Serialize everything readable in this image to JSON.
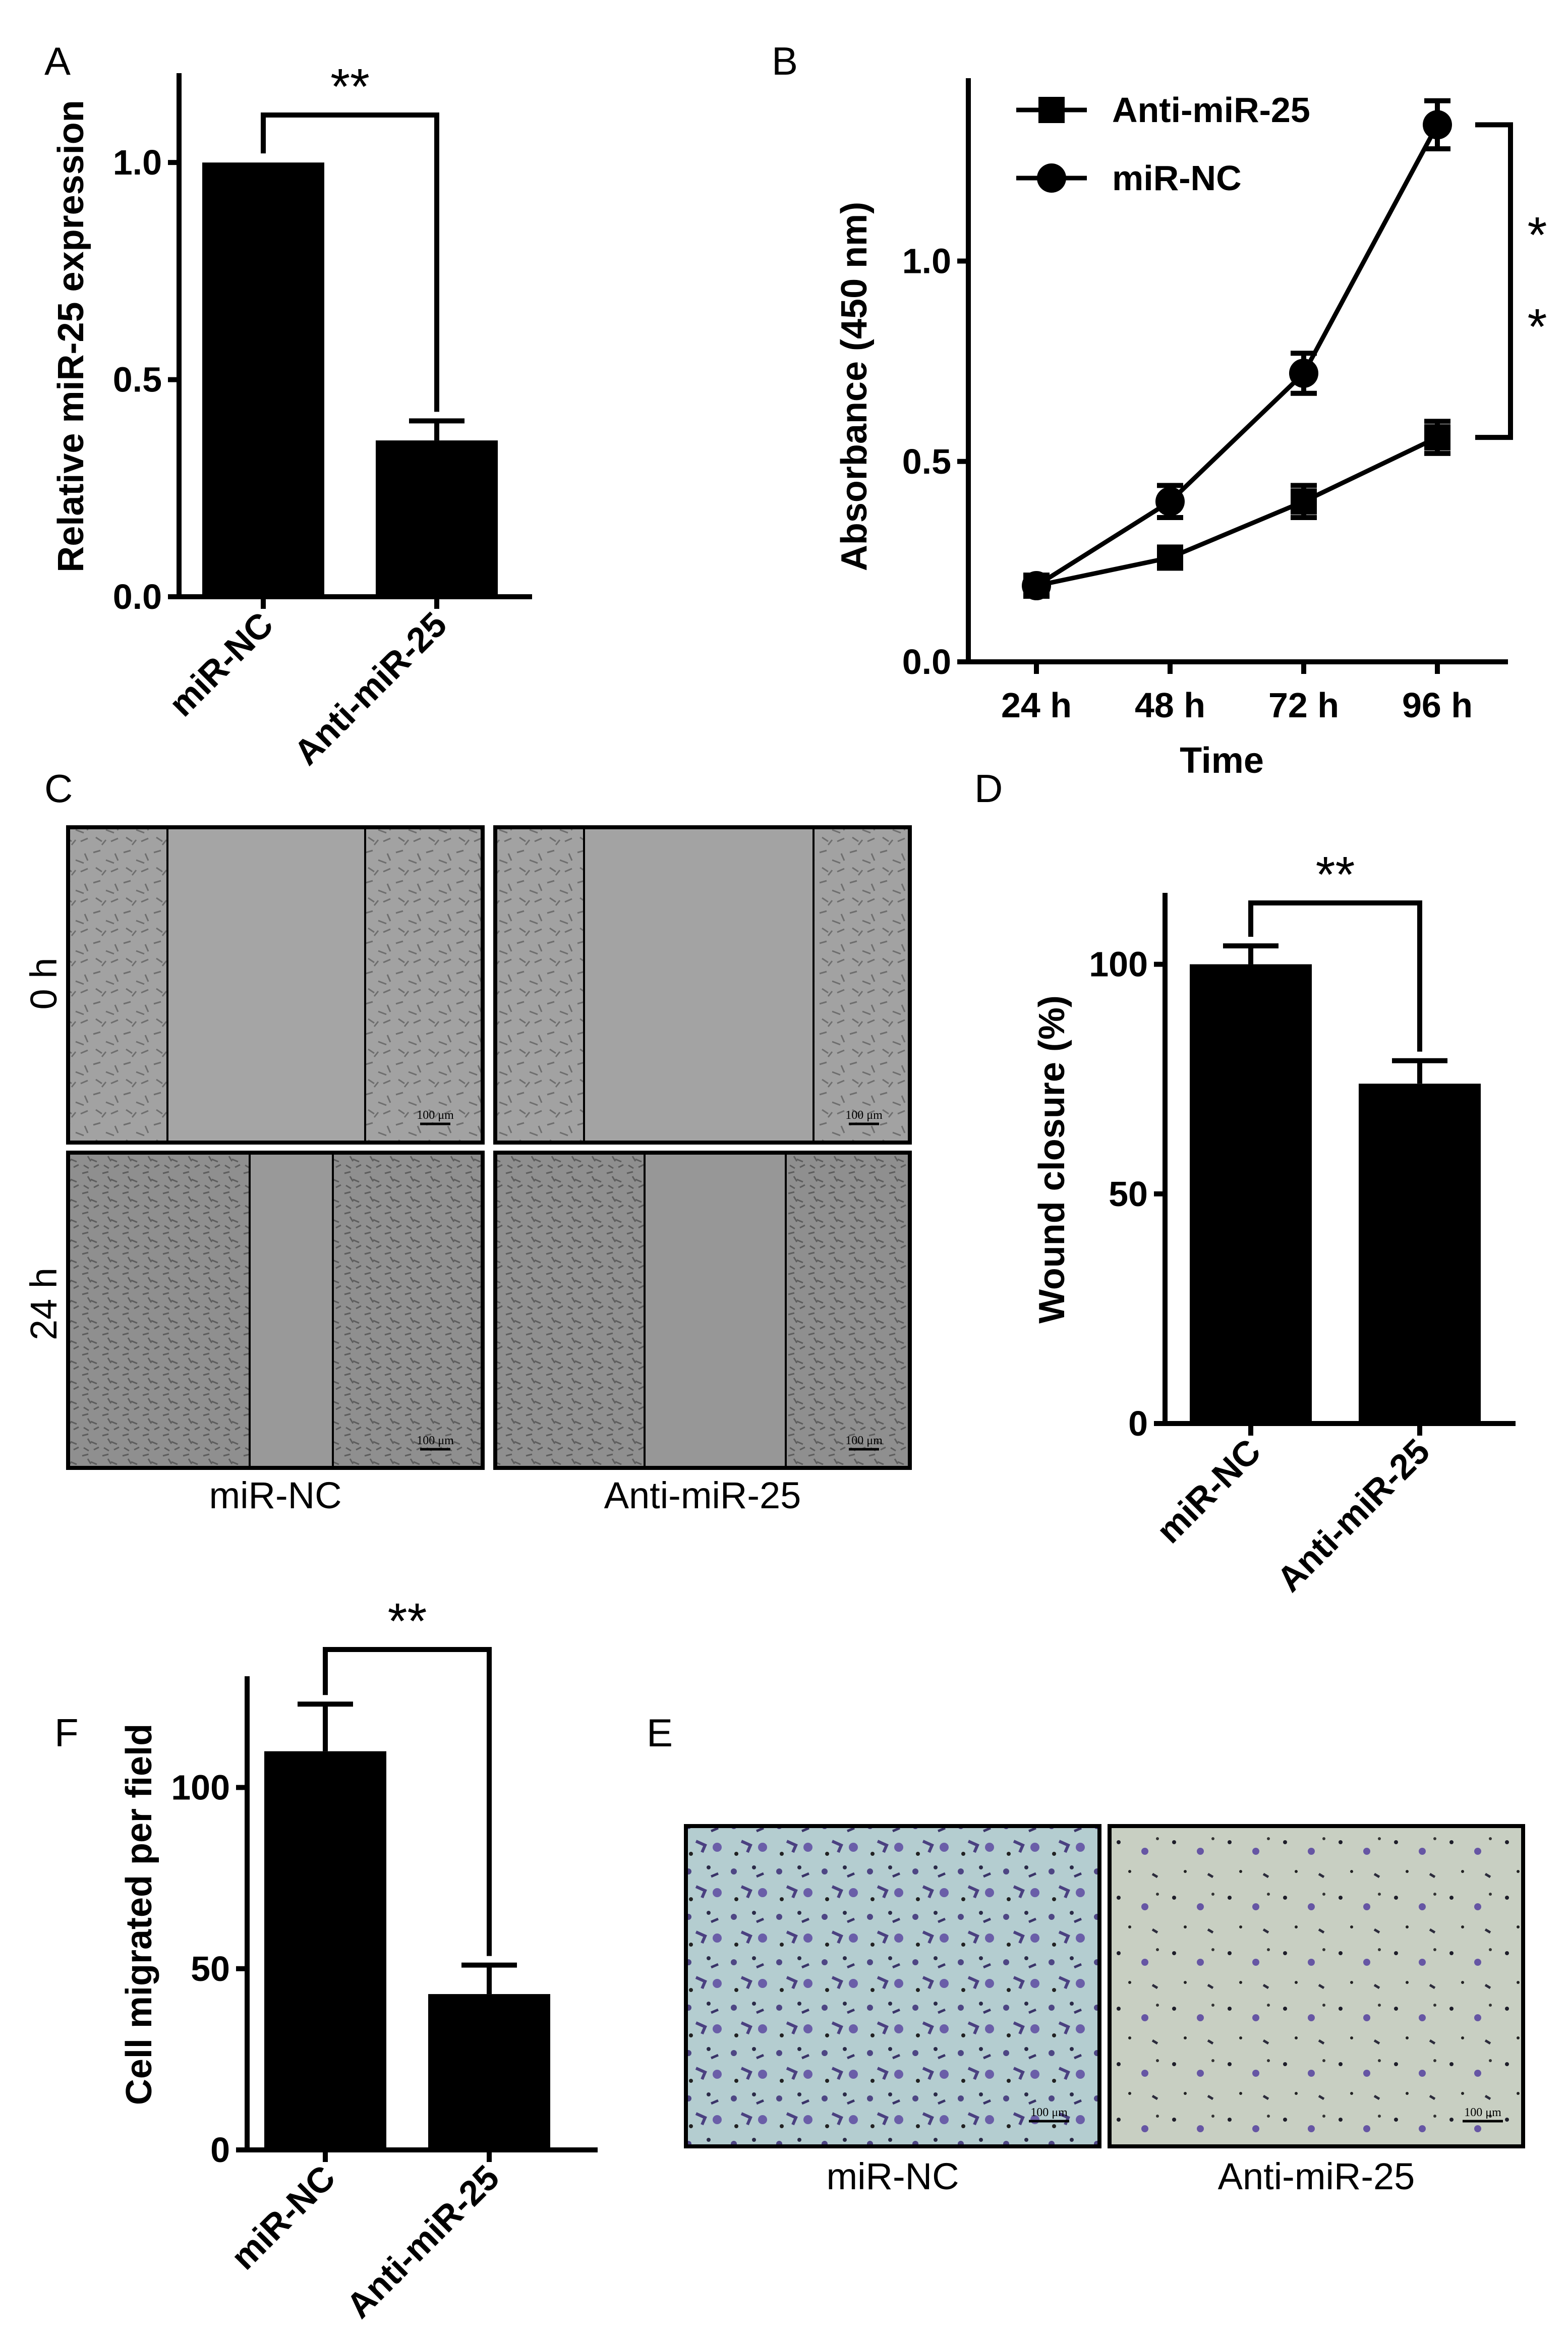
{
  "panels": {
    "A": {
      "label": "A",
      "sig": "**",
      "chart_data": {
        "type": "bar",
        "categories": [
          "miR-NC",
          "Anti-miR-25"
        ],
        "values": [
          1.0,
          0.36
        ],
        "errors": [
          0.0,
          0.045
        ],
        "ylabel": "Relative miR-25 expression",
        "xlabel": "",
        "ylim": [
          0,
          1.2
        ],
        "yticks": [
          "0.0",
          "0.5",
          "1.0"
        ],
        "ytick_values": [
          0,
          0.5,
          1.0
        ]
      }
    },
    "B": {
      "label": "B",
      "sig": "* *",
      "chart_data": {
        "type": "line",
        "x": [
          "24 h",
          "48 h",
          "72 h",
          "96 h"
        ],
        "series": [
          {
            "name": "Anti-miR-25",
            "marker": "square",
            "values": [
              0.19,
              0.26,
              0.4,
              0.56
            ],
            "errors": [
              0.02,
              0.02,
              0.04,
              0.04
            ]
          },
          {
            "name": "miR-NC",
            "marker": "circle",
            "values": [
              0.19,
              0.4,
              0.72,
              1.34
            ],
            "errors": [
              0.02,
              0.04,
              0.05,
              0.06
            ]
          }
        ],
        "ylabel": "Absorbance (450 nm)",
        "xlabel": "Time",
        "ylim": [
          0,
          1.45
        ],
        "yticks": [
          "0.0",
          "0.5",
          "1.0"
        ],
        "ytick_values": [
          0,
          0.5,
          1.0
        ],
        "legend": "top-left"
      }
    },
    "C": {
      "label": "C",
      "rows": [
        "0 h",
        "24 h"
      ],
      "cols": [
        "miR-NC",
        "Anti-miR-25"
      ],
      "scale_label": "100 μm"
    },
    "D": {
      "label": "D",
      "sig": "**",
      "chart_data": {
        "type": "bar",
        "categories": [
          "miR-NC",
          "Anti-miR-25"
        ],
        "values": [
          100,
          74
        ],
        "errors": [
          4,
          5
        ],
        "ylabel": "Wound closure (%)",
        "xlabel": "",
        "ylim": [
          0,
          115
        ],
        "yticks": [
          "0",
          "50",
          "100"
        ],
        "ytick_values": [
          0,
          50,
          100
        ]
      }
    },
    "F": {
      "label": "F",
      "sig": "**",
      "chart_data": {
        "type": "bar",
        "categories": [
          "miR-NC",
          "Anti-miR-25"
        ],
        "values": [
          110,
          43
        ],
        "errors": [
          13,
          8
        ],
        "ylabel": "Cell migrated per field",
        "xlabel": "",
        "ylim": [
          0,
          130
        ],
        "yticks": [
          "0",
          "50",
          "100"
        ],
        "ytick_values": [
          0,
          50,
          100
        ]
      }
    },
    "E": {
      "label": "E",
      "cols": [
        "miR-NC",
        "Anti-miR-25"
      ],
      "scale_label": "100 μm"
    }
  },
  "colors": {
    "bars": "#000000",
    "micro_gray": "#9c9c9c",
    "micro_gray_dense": "#8f8f8f",
    "transwell_bg": "#b8cfd0",
    "transwell_bg2": "#c8cfc4",
    "transwell_cell": "#5a4f8e"
  }
}
